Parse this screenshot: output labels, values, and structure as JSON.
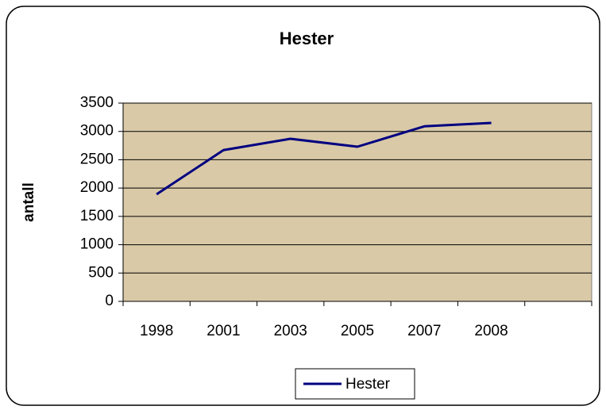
{
  "chart_data": {
    "type": "line",
    "title": "Hester",
    "y_label": "antall",
    "categories": [
      "1998",
      "2001",
      "2003",
      "2005",
      "2007",
      "2008",
      null
    ],
    "series": [
      {
        "name": "Hester",
        "color": "#000080",
        "values": [
          1890,
          2670,
          2870,
          2730,
          3090,
          3150,
          null
        ]
      }
    ],
    "ylim": [
      0,
      3500
    ],
    "yticks": [
      0,
      500,
      1000,
      1500,
      2000,
      2500,
      3000,
      3500
    ],
    "grid": true,
    "legend": "bottom"
  }
}
